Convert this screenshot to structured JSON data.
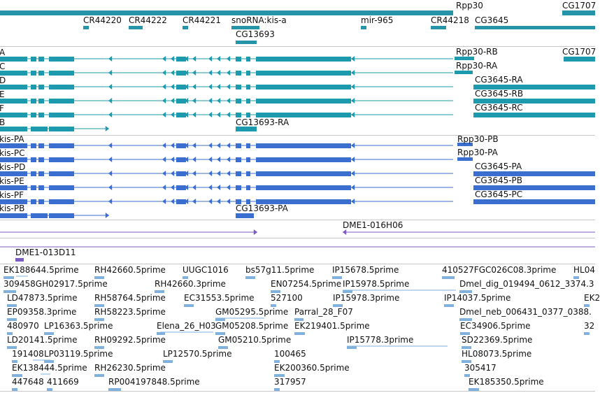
{
  "colors": {
    "gene": "#2694a8",
    "transcript_teal": "#1e9aae",
    "transcript_blue": "#3a6fd0",
    "clone": "#7a5cc0",
    "est": "#7fb1dc",
    "separator": "#c8c8c8",
    "text": "#111111"
  },
  "gene_labels": [
    "Rpp30",
    "CG1707",
    "CR44220",
    "CR44222",
    "CR44221",
    "snoRNA:kis-a",
    "mir-965",
    "CR44218",
    "CG3645",
    "CG13693"
  ],
  "transcripts_teal_left": [
    "A",
    "C",
    "D",
    "E",
    "F",
    "B"
  ],
  "transcripts_teal_right": [
    "Rpp30-RB",
    "CG1707",
    "Rpp30-RA",
    "CG3645-RA",
    "CG3645-RB",
    "CG3645-RC",
    "CG13693-RA"
  ],
  "transcripts_blue_left": [
    "kis-PA",
    "kis-PC",
    "kis-PD",
    "kis-PE",
    "kis-PF",
    "kis-PB"
  ],
  "transcripts_blue_right": [
    "Rpp30-PB",
    "Rpp30-PA",
    "CG3645-PA",
    "CG3645-PB",
    "CG3645-PC",
    "CG13693-PA"
  ],
  "clones": [
    "DME1-016H06",
    "DME1-013D11"
  ],
  "est_labels": [
    "EK188644.5prime",
    "RH42660.5prime",
    "UUGC1016",
    "bs57g11.5prime",
    "IP15678.5prime",
    "410527FGC026C08.3prime",
    "HL04",
    "309458GH02917.5prime",
    "RH42660.3prime",
    "EN07254.5prime",
    "IP15978.5prime",
    "Dmel_dig_019494_0612_3374.3",
    "LD47873.5prime",
    "RH58764.5prime",
    "EC31553.5prime",
    "527100",
    "IP15978.3prime",
    "IP14037.5prime",
    "EK2",
    "EP09358.3prime",
    "RH58223.5prime",
    "GM05295.5prime",
    "Parral_28_F07",
    "Dmel_neb_006431_0377_0388.",
    "480970",
    "LP16363.5prime",
    "Elena_26_H03",
    "GM05208.5prime",
    "EK219401.5prime",
    "EC34906.5prime",
    "32",
    "LD20141.5prime",
    "RH09292.5prime",
    "GM05210.5prime",
    "IP15778.3prime",
    "SD22369.5prime",
    "191408",
    "LP03119.5prime",
    "LP12570.5prime",
    "100465",
    "HL08073.5prime",
    "EK138444.5prime",
    "RH26230.5prime",
    "EK200360.5prime",
    "305417",
    "447648",
    "411669",
    "RP004197848.5prime",
    "317957",
    "EK185350.5prime"
  ]
}
